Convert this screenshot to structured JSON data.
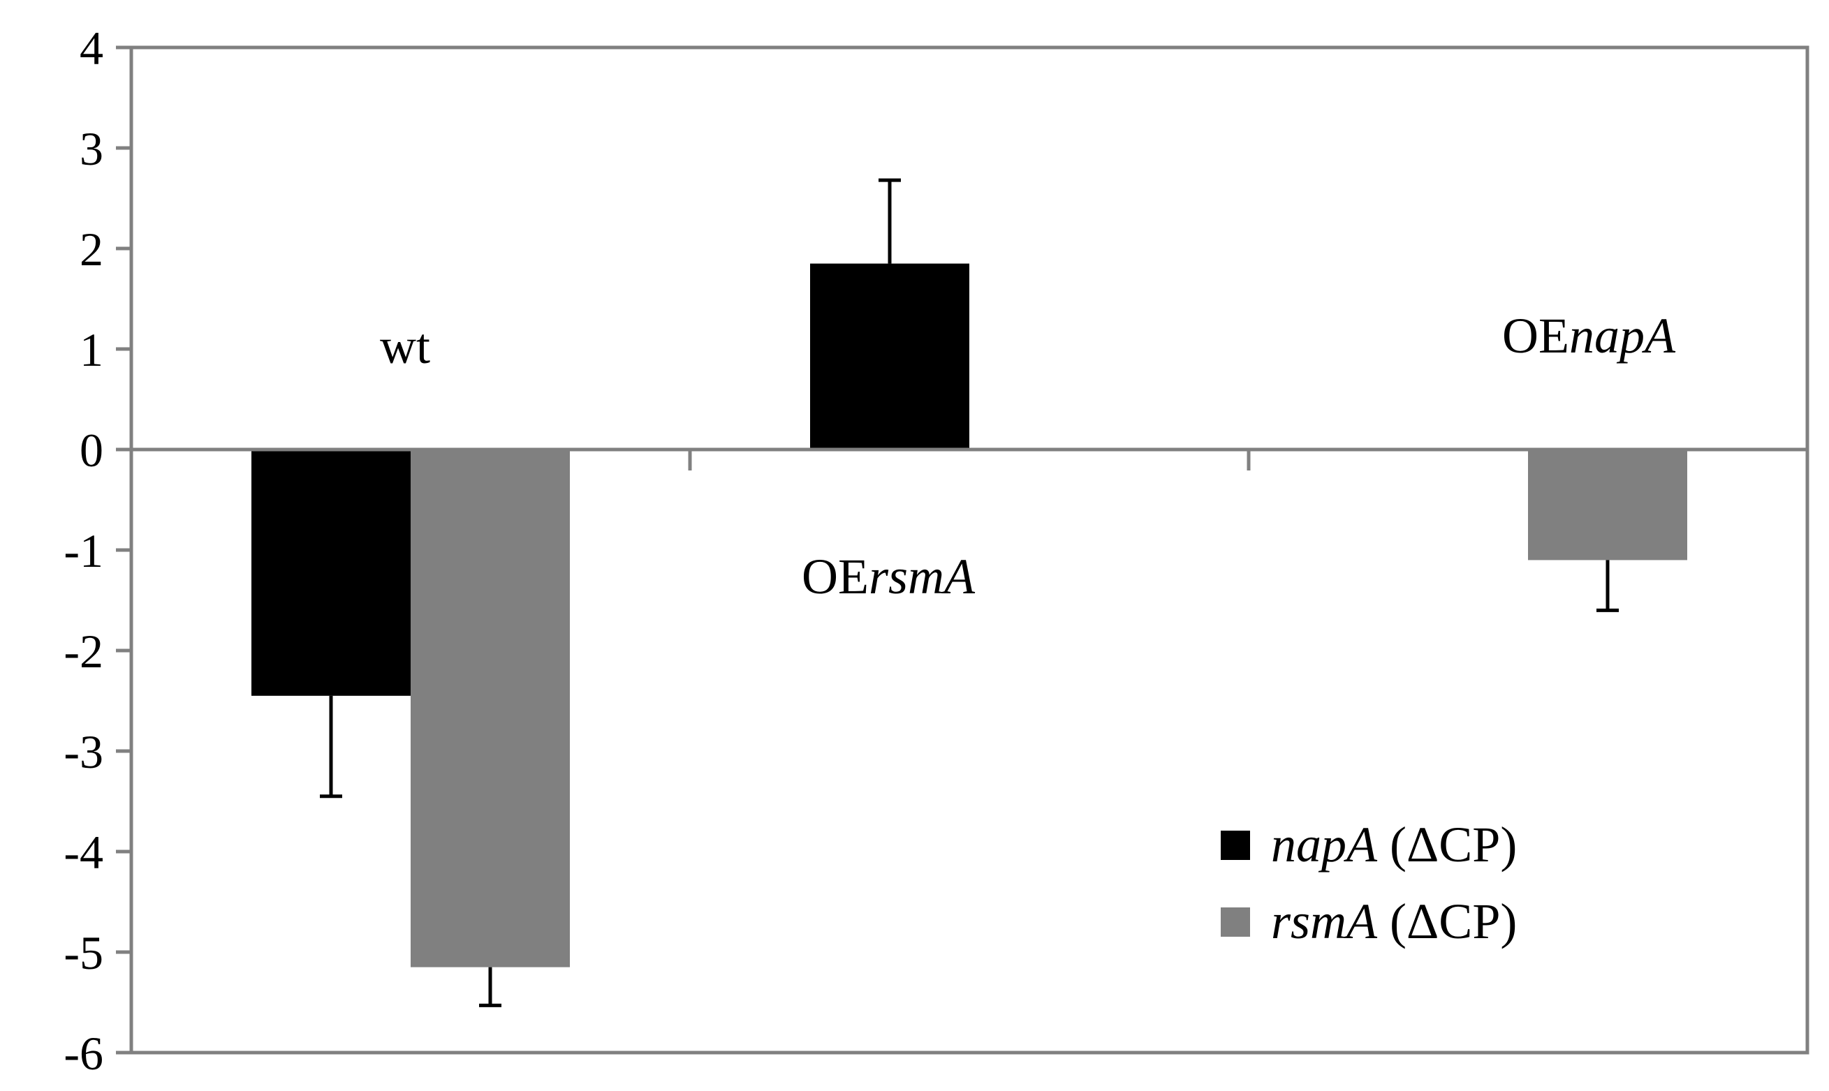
{
  "chart_data": {
    "type": "bar",
    "categories": [
      {
        "prefix": "",
        "italic": "",
        "plain": "wt"
      },
      {
        "prefix": "OE",
        "italic": "rsmA",
        "plain": ""
      },
      {
        "prefix": "OE",
        "italic": "napA",
        "plain": ""
      }
    ],
    "series": [
      {
        "name_italic": "napA",
        "name_plain": " (ΔCP)",
        "color": "#000000",
        "values": [
          -2.45,
          1.85,
          null
        ],
        "errors": [
          1.0,
          0.83,
          null
        ]
      },
      {
        "name_italic": "rsmA",
        "name_plain": " (ΔCP)",
        "color": "#808080",
        "values": [
          -5.15,
          null,
          -1.1
        ],
        "errors": [
          0.38,
          null,
          0.5
        ]
      }
    ],
    "ylim": [
      -6,
      4
    ],
    "yticks": [
      "4",
      "3",
      "2",
      "1",
      "0",
      "-1",
      "-2",
      "-3",
      "-4",
      "-5",
      "-6"
    ],
    "title": "",
    "xlabel": "",
    "ylabel": "",
    "grid": false,
    "legend_position": "bottom-right",
    "axis_color": "#808080"
  }
}
